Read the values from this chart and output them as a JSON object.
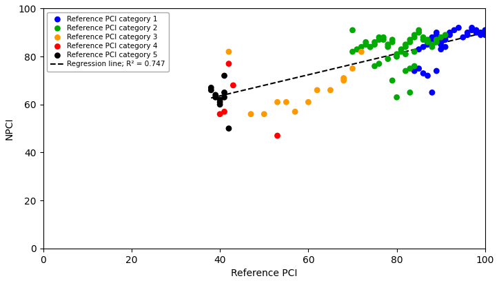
{
  "title": "",
  "xlabel": "Reference PCI",
  "ylabel": "NPCI",
  "xlim": [
    0,
    100
  ],
  "ylim": [
    0,
    100
  ],
  "xticks": [
    0,
    20,
    40,
    60,
    80,
    100
  ],
  "yticks": [
    0,
    20,
    40,
    60,
    80,
    100
  ],
  "r_squared": 0.747,
  "regression_slope": 0.44,
  "regression_intercept": 46.0,
  "categories": {
    "1": {
      "color": "#0000ff",
      "label": "Reference PCI category 1",
      "x": [
        85,
        86,
        87,
        87,
        88,
        88,
        89,
        89,
        90,
        90,
        91,
        91,
        92,
        92,
        93,
        94,
        95,
        96,
        96,
        97,
        97,
        98,
        98,
        99,
        99,
        100,
        100,
        86,
        87,
        88,
        89,
        84,
        85,
        90,
        91
      ],
      "y": [
        83,
        84,
        85,
        86,
        87,
        88,
        89,
        90,
        85,
        86,
        87,
        88,
        89,
        90,
        91,
        92,
        88,
        89,
        90,
        91,
        92,
        90,
        91,
        89,
        90,
        91,
        89,
        73,
        72,
        65,
        74,
        74,
        75,
        83,
        84
      ]
    },
    "2": {
      "color": "#00aa00",
      "label": "Reference PCI category 2",
      "x": [
        70,
        71,
        72,
        73,
        74,
        75,
        75,
        76,
        76,
        77,
        77,
        78,
        78,
        79,
        79,
        80,
        80,
        81,
        81,
        82,
        82,
        83,
        83,
        84,
        84,
        85,
        85,
        86,
        86,
        87,
        87,
        88,
        88,
        89,
        89,
        90,
        91,
        75,
        76,
        78,
        80,
        82,
        84,
        83,
        80,
        79,
        82,
        83,
        84,
        70,
        74,
        73
      ],
      "y": [
        82,
        83,
        84,
        85,
        84,
        85,
        86,
        87,
        88,
        87,
        88,
        84,
        85,
        86,
        87,
        80,
        81,
        82,
        83,
        84,
        85,
        86,
        87,
        88,
        89,
        90,
        91,
        87,
        88,
        86,
        87,
        84,
        85,
        86,
        87,
        88,
        89,
        76,
        77,
        79,
        80,
        81,
        82,
        65,
        63,
        70,
        74,
        75,
        76,
        91,
        84,
        86
      ]
    },
    "3": {
      "color": "#ff9900",
      "label": "Reference PCI category 3",
      "x": [
        42,
        47,
        50,
        53,
        55,
        57,
        60,
        62,
        65,
        68,
        70,
        72,
        68
      ],
      "y": [
        82,
        56,
        56,
        61,
        61,
        57,
        61,
        66,
        66,
        71,
        75,
        82,
        70
      ]
    },
    "4": {
      "color": "#ff0000",
      "label": "Reference PCI category 4",
      "x": [
        40,
        41,
        43,
        53,
        42
      ],
      "y": [
        56,
        57,
        68,
        47,
        77
      ]
    },
    "5": {
      "color": "#000000",
      "label": "Reference PCI category 5",
      "x": [
        38,
        38,
        39,
        39,
        40,
        40,
        40,
        41,
        41,
        41,
        42
      ],
      "y": [
        66,
        67,
        63,
        64,
        60,
        61,
        62,
        63,
        65,
        72,
        50
      ]
    }
  },
  "legend_label_regression": "Regression line; R² = 0.747",
  "marker_size": 40,
  "figsize": [
    7.24,
    4.11
  ],
  "dpi": 100
}
